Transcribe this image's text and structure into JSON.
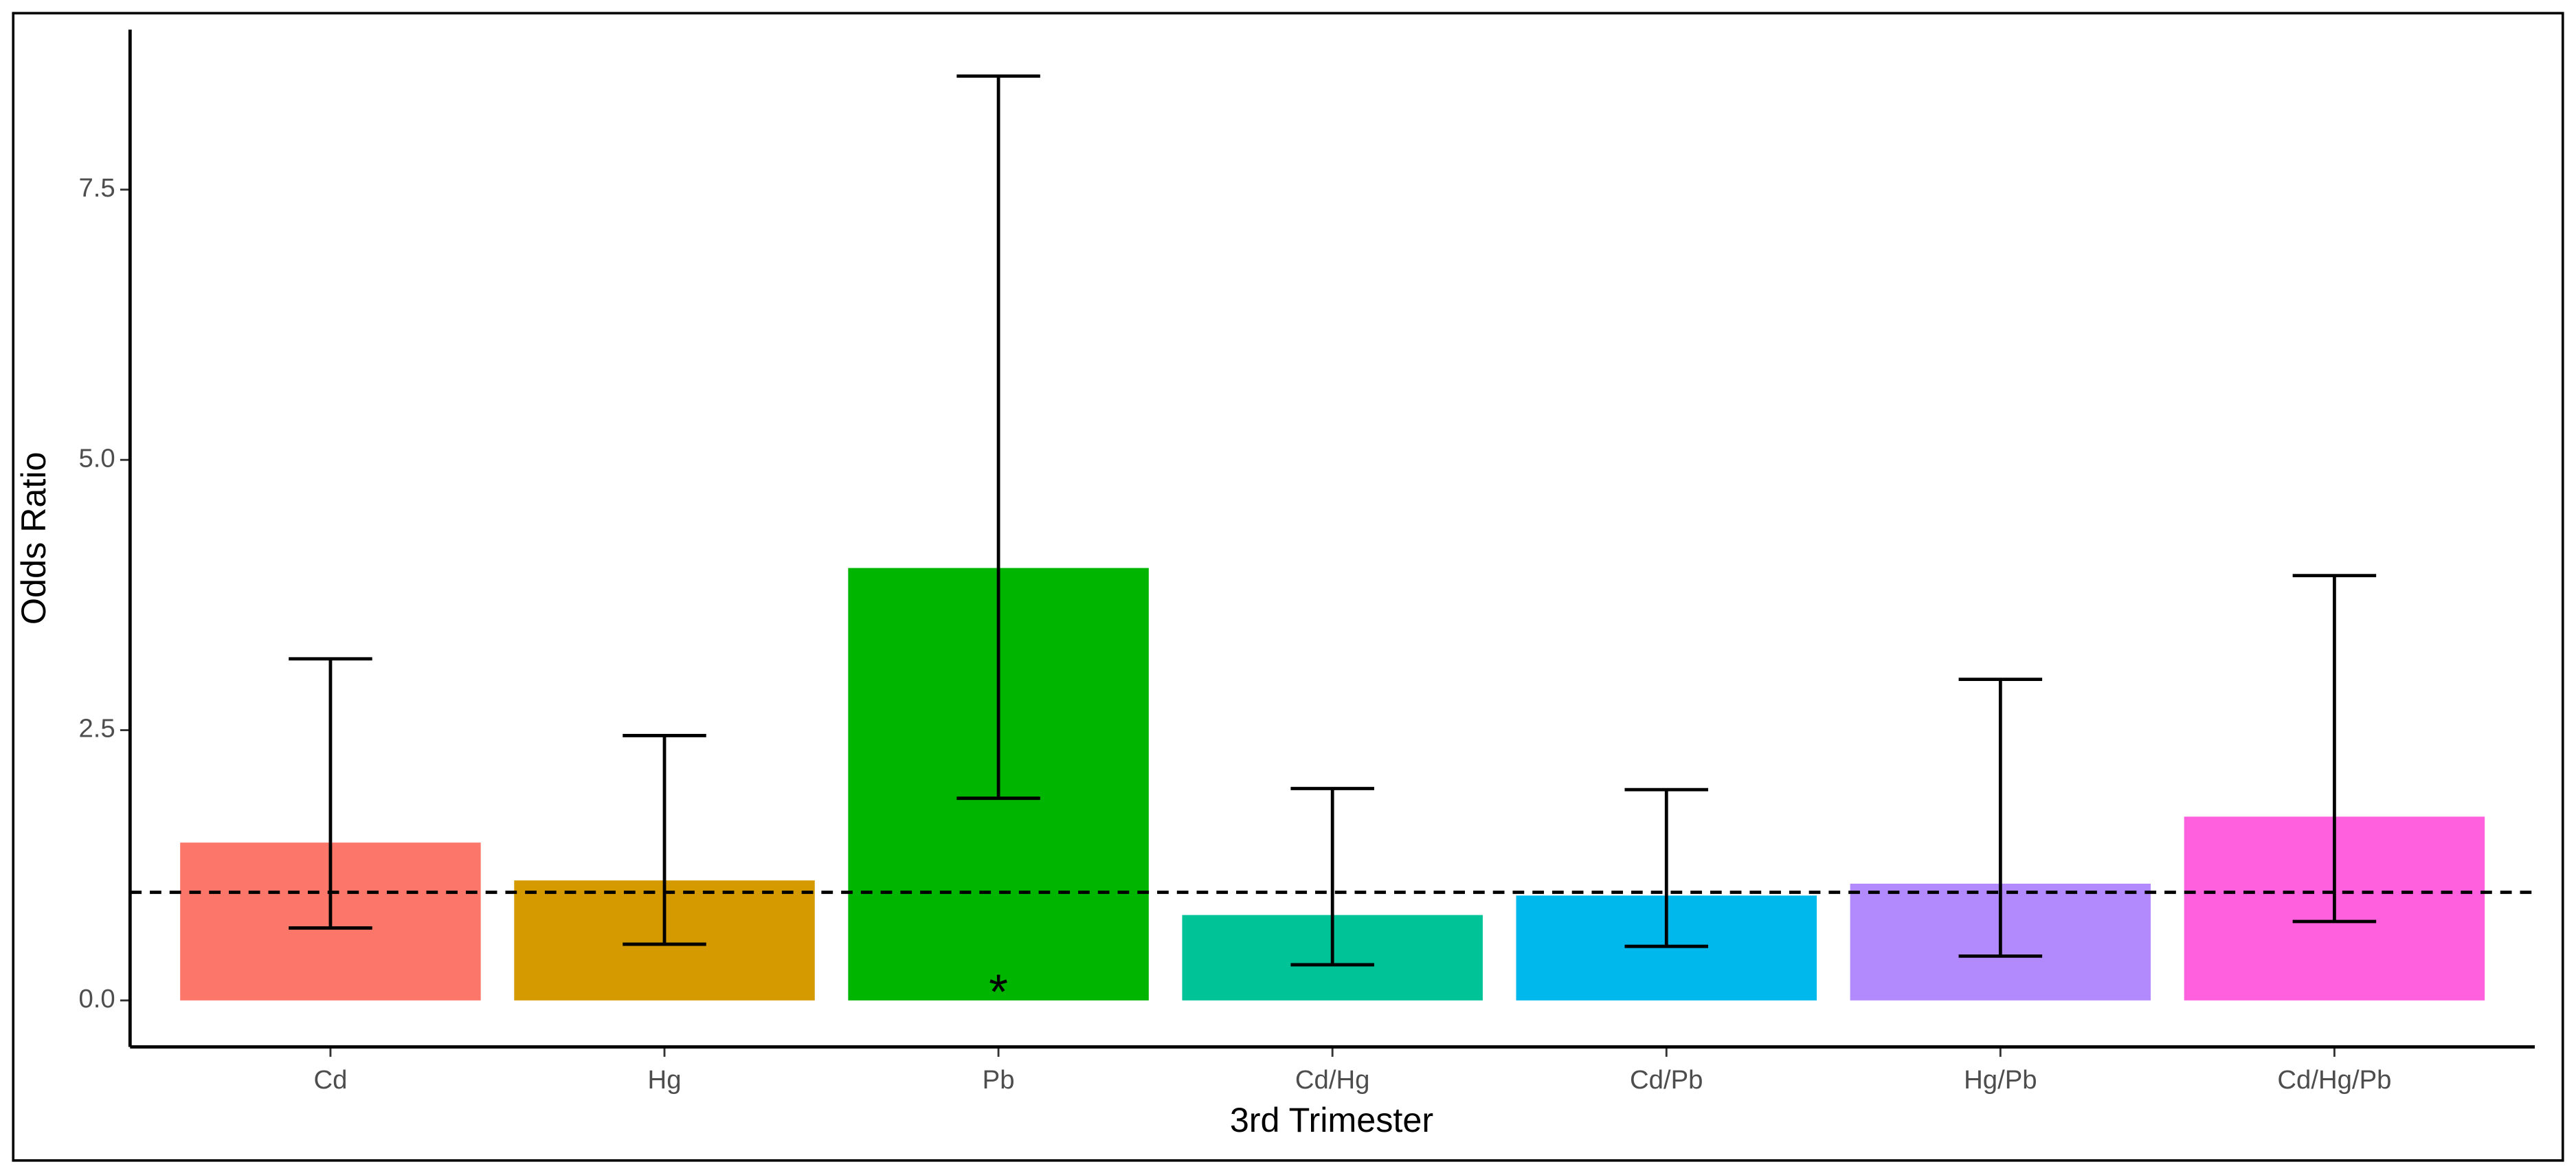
{
  "chart_data": {
    "type": "bar",
    "x_label": "3rd Trimester",
    "y_label": "Odds Ratio",
    "categories": [
      "Cd",
      "Hg",
      "Pb",
      "Cd/Hg",
      "Cd/Pb",
      "Hg/Pb",
      "Cd/Hg/Pb"
    ],
    "values": [
      1.46,
      1.11,
      4.0,
      0.79,
      0.97,
      1.08,
      1.7
    ],
    "ci_lower": [
      0.67,
      0.52,
      1.87,
      0.33,
      0.5,
      0.41,
      0.73
    ],
    "ci_upper": [
      3.16,
      2.45,
      8.55,
      1.96,
      1.95,
      2.97,
      3.93
    ],
    "colors": [
      "#FC766A",
      "#D49A00",
      "#00B500",
      "#00C397",
      "#00B8EC",
      "#B28AFE",
      "#FF61DE"
    ],
    "reference_line": 1,
    "annotations": [
      {
        "text": "*",
        "category": "Pb"
      }
    ],
    "ylim": [
      -0.43,
      8.98
    ],
    "yticks": [
      {
        "value": 0,
        "label": "0.0"
      },
      2.5,
      {
        "value": 5,
        "label": "5.0"
      },
      7.5
    ],
    "grid": false
  }
}
